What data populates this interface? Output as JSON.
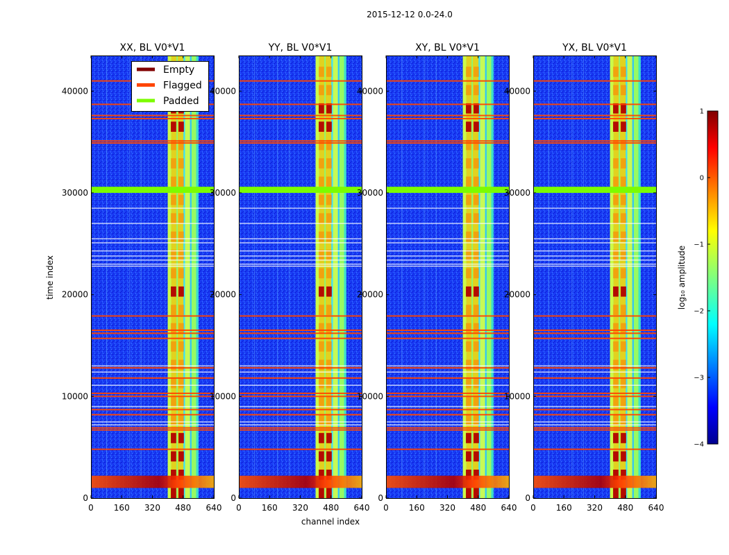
{
  "chart_data": {
    "type": "heatmap",
    "suptitle": "2015-12-12 0.0-24.0",
    "xlabel": "channel index",
    "ylabel": "time index",
    "xlim": [
      0,
      640
    ],
    "ylim": [
      0,
      43500
    ],
    "xticks": [
      "0",
      "160",
      "320",
      "480",
      "640"
    ],
    "yticks": [
      "0",
      "10000",
      "20000",
      "30000",
      "40000"
    ],
    "panels": [
      {
        "title": "XX, BL V0*V1"
      },
      {
        "title": "YY, BL V0*V1"
      },
      {
        "title": "XY, BL V0*V1"
      },
      {
        "title": "YX, BL V0*V1"
      }
    ],
    "legend": {
      "location": "top-right of first panel",
      "entries": [
        {
          "label": "Empty",
          "color": "#800000"
        },
        {
          "label": "Flagged",
          "color": "#ff4500"
        },
        {
          "label": "Padded",
          "color": "#7cfc00"
        }
      ]
    },
    "colorbar": {
      "label": "log₁₀ amplitude",
      "range": [
        -4,
        1
      ],
      "ticks": [
        "1",
        "0",
        "−1",
        "−2",
        "−3",
        "−4"
      ],
      "colormap": "jet"
    },
    "features": {
      "bright_channel_band": [
        400,
        560
      ],
      "strong_channels": [
        430,
        470
      ],
      "padded_time_band": [
        30000,
        30600
      ],
      "flagged_time_rows": [
        41000,
        38700,
        37600,
        37300,
        35100,
        34900,
        17900,
        16500,
        16200,
        15700,
        12800,
        11800,
        10300,
        10000,
        8700,
        8200,
        6900,
        6700,
        4800
      ],
      "white_gap_rows": [
        28500,
        27000,
        25500,
        25100,
        24300,
        23800,
        23400,
        23000,
        22800,
        13000,
        12400,
        11100,
        9000,
        7500,
        7200
      ],
      "low_time_bright_band": [
        1000,
        2200
      ]
    }
  }
}
